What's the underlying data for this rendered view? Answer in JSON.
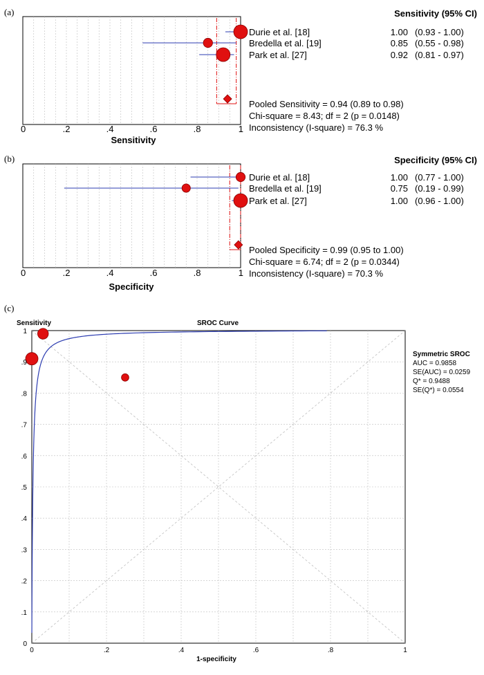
{
  "chart_data": [
    {
      "panel_label": "(a)",
      "type": "forest",
      "header": "Sensitivity (95% CI)",
      "xlabel": "Sensitivity",
      "xlim": [
        0,
        1
      ],
      "xticks": [
        "0",
        ".2",
        ".4",
        ".6",
        ".8",
        "1"
      ],
      "tick_values": [
        0,
        0.2,
        0.4,
        0.6,
        0.8,
        1
      ],
      "studies": [
        {
          "name": "Durie  et al. [18]",
          "estimate": 1.0,
          "lower": 0.93,
          "upper": 1.0,
          "value_text": "1.00",
          "ci_text": "(0.93 - 1.00)",
          "weight": 1.0
        },
        {
          "name": "Bredella  et al. [19]",
          "estimate": 0.85,
          "lower": 0.55,
          "upper": 0.98,
          "value_text": "0.85",
          "ci_text": "(0.55 - 0.98)",
          "weight": 0.45
        },
        {
          "name": "Park  et al. [27]",
          "estimate": 0.92,
          "lower": 0.81,
          "upper": 0.97,
          "value_text": "0.92",
          "ci_text": "(0.81 - 0.97)",
          "weight": 1.0
        }
      ],
      "pooled": {
        "estimate": 0.94,
        "lower": 0.89,
        "upper": 0.98
      },
      "stats": [
        "Pooled Sensitivity = 0.94 (0.89 to 0.98)",
        "Chi-square = 8.43; df =  2 (p = 0.0148)",
        "Inconsistency (I-square) = 76.3 %"
      ]
    },
    {
      "panel_label": "(b)",
      "type": "forest",
      "header": "Specificity (95% CI)",
      "xlabel": "Specificity",
      "xlim": [
        0,
        1
      ],
      "xticks": [
        "0",
        ".2",
        ".4",
        ".6",
        ".8",
        "1"
      ],
      "tick_values": [
        0,
        0.2,
        0.4,
        0.6,
        0.8,
        1
      ],
      "studies": [
        {
          "name": "Durie  et al. [18]",
          "estimate": 1.0,
          "lower": 0.77,
          "upper": 1.0,
          "value_text": "1.00",
          "ci_text": "(0.77 - 1.00)",
          "weight": 0.45
        },
        {
          "name": "Bredella  et al. [19]",
          "estimate": 0.75,
          "lower": 0.19,
          "upper": 0.99,
          "value_text": "0.75",
          "ci_text": "(0.19 - 0.99)",
          "weight": 0.35
        },
        {
          "name": "Park  et al. [27]",
          "estimate": 1.0,
          "lower": 0.96,
          "upper": 1.0,
          "value_text": "1.00",
          "ci_text": "(0.96 - 1.00)",
          "weight": 1.0
        }
      ],
      "pooled": {
        "estimate": 0.99,
        "lower": 0.95,
        "upper": 1.0
      },
      "stats": [
        "Pooled Specificity = 0.99 (0.95 to 1.00)",
        "Chi-square = 6.74; df =  2 (p = 0.0344)",
        "Inconsistency (I-square) = 70.3 %"
      ]
    },
    {
      "panel_label": "(c)",
      "type": "scatter",
      "title": "SROC Curve",
      "xlabel": "1-specificity",
      "ylabel": "Sensitivity",
      "xlim": [
        0,
        1
      ],
      "ylim": [
        0,
        1
      ],
      "xticks": [
        "0",
        ".2",
        ".4",
        ".6",
        ".8",
        "1"
      ],
      "yticks": [
        "0",
        ".1",
        ".2",
        ".3",
        ".4",
        ".5",
        ".6",
        ".7",
        ".8",
        ".9",
        "1"
      ],
      "grid": true,
      "points": [
        {
          "x": 0.0,
          "y": 0.91,
          "weight": 1.0
        },
        {
          "x": 0.03,
          "y": 0.99,
          "weight": 0.8
        },
        {
          "x": 0.25,
          "y": 0.85,
          "weight": 0.4
        }
      ],
      "curve": {
        "type": "symmetric-sroc",
        "auc": 0.9858,
        "x_end": 0.79
      },
      "legend": {
        "title": "Symmetric SROC",
        "lines": [
          "AUC = 0.9858",
          "SE(AUC) = 0.0259",
          "Q* = 0.9488",
          "SE(Q*) = 0.0554"
        ],
        "position": "right"
      }
    }
  ],
  "colors": {
    "marker": "#e01010",
    "marker_edge": "#8a0000",
    "ci_line": "#2b3bb0",
    "pooled_line": "#e01010",
    "grid": "#bdbdbd",
    "curve": "#2b3bb0"
  }
}
